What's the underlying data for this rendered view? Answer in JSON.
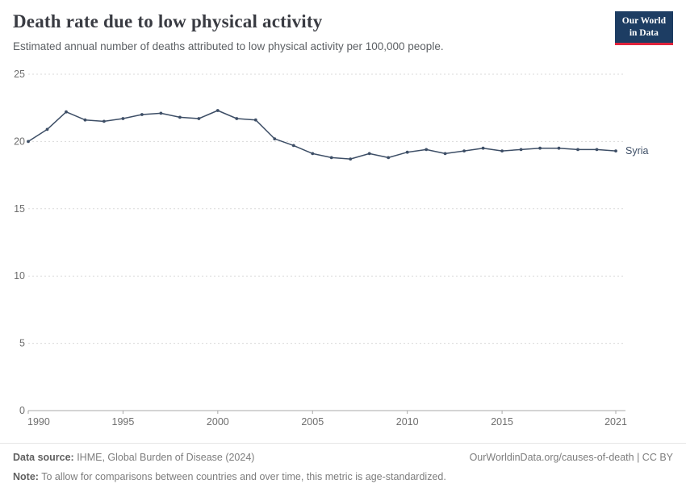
{
  "logo": {
    "line1": "Our World",
    "line2": "in Data",
    "bg": "#1d3d63",
    "accent": "#e0233c"
  },
  "footer": {
    "data_source_label": "Data source:",
    "data_source_value": " IHME, Global Burden of Disease (2024)",
    "link": "OurWorldinData.org/causes-of-death | CC BY",
    "note_label": "Note:",
    "note_value": " To allow for comparisons between countries and over time, this metric is age-standardized."
  },
  "chart_data": {
    "type": "line",
    "title": "Death rate due to low physical activity",
    "subtitle": "Estimated annual number of deaths attributed to low physical activity per 100,000 people.",
    "xlabel": "",
    "ylabel": "",
    "ylim": [
      0,
      25
    ],
    "yticks": [
      0,
      5,
      10,
      15,
      20,
      25
    ],
    "xticks": [
      1990,
      1995,
      2000,
      2005,
      2010,
      2015,
      2021
    ],
    "grid": true,
    "legend_position": "end-of-line",
    "x": [
      1990,
      1991,
      1992,
      1993,
      1994,
      1995,
      1996,
      1997,
      1998,
      1999,
      2000,
      2001,
      2002,
      2003,
      2004,
      2005,
      2006,
      2007,
      2008,
      2009,
      2010,
      2011,
      2012,
      2013,
      2014,
      2015,
      2016,
      2017,
      2018,
      2019,
      2020,
      2021
    ],
    "series": [
      {
        "name": "Syria",
        "color": "#3d4e66",
        "values": [
          20.0,
          20.9,
          22.2,
          21.6,
          21.5,
          21.7,
          22.0,
          22.1,
          21.8,
          21.7,
          22.3,
          21.7,
          21.6,
          20.2,
          19.7,
          19.1,
          18.8,
          18.7,
          19.1,
          18.8,
          19.2,
          19.4,
          19.1,
          19.3,
          19.5,
          19.3,
          19.4,
          19.5,
          19.5,
          19.4,
          19.4,
          19.3
        ]
      }
    ]
  }
}
